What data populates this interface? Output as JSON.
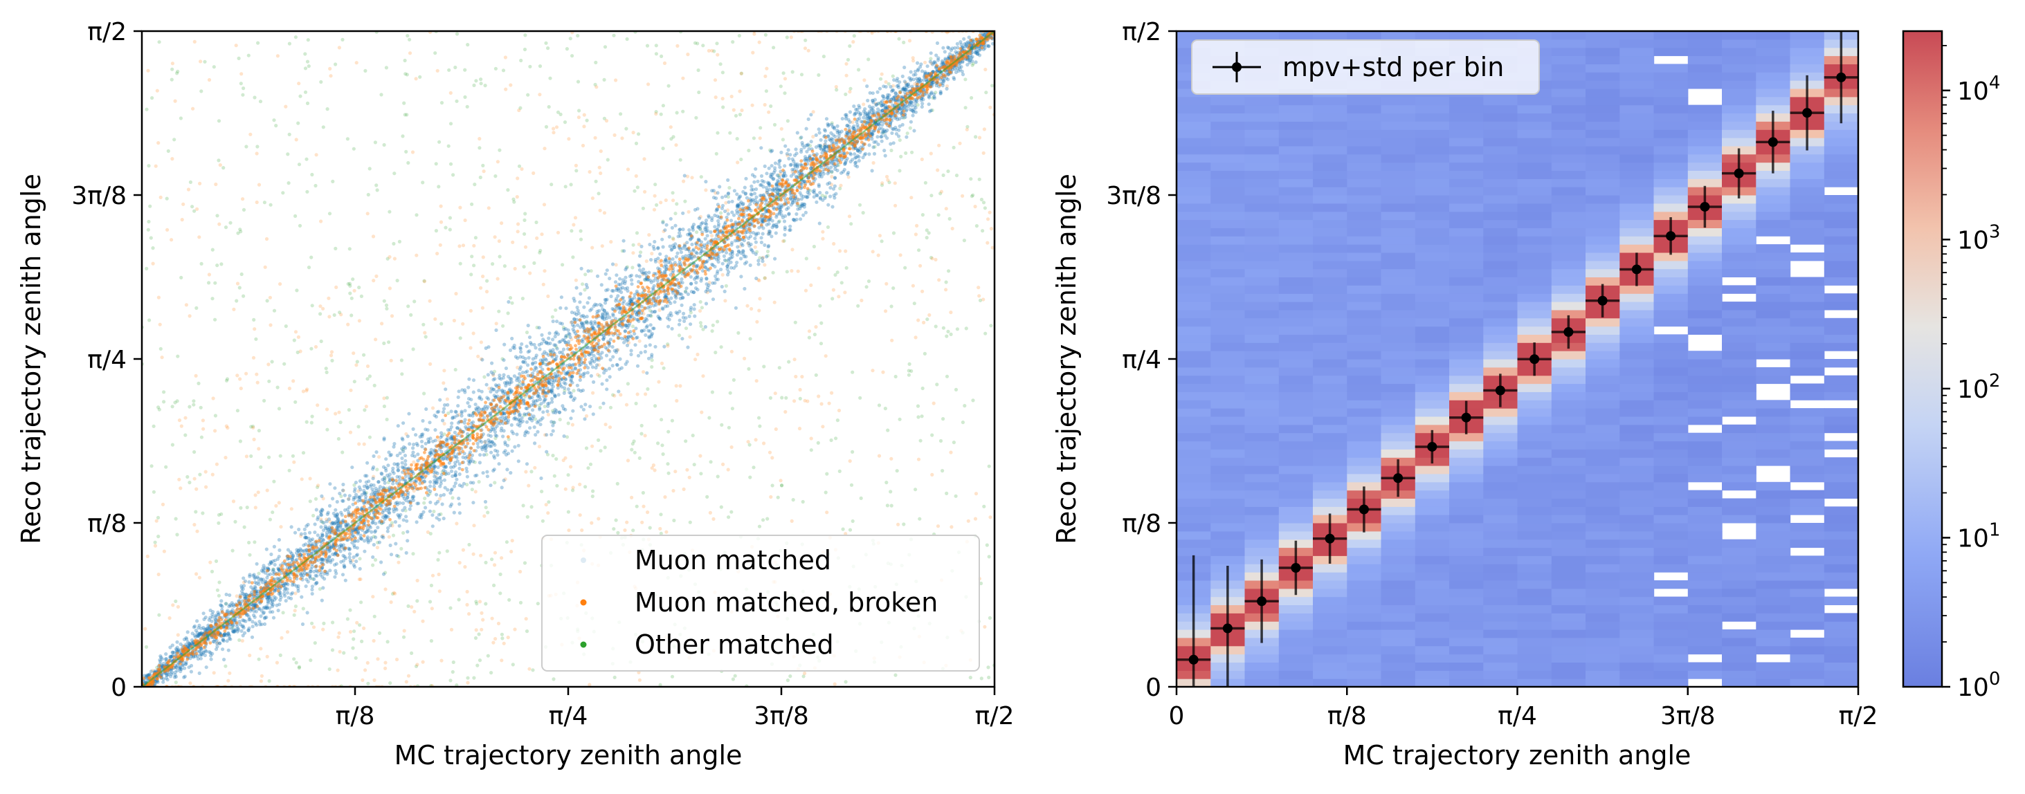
{
  "chart_data": [
    {
      "type": "scatter",
      "title": "",
      "xlabel": "MC trajectory zenith angle",
      "ylabel": "Reco trajectory zenith angle",
      "xlim": [
        0,
        1.5708
      ],
      "ylim": [
        0,
        1.5708
      ],
      "xticks": [
        {
          "value": 0.3927,
          "label": "π/8"
        },
        {
          "value": 0.7854,
          "label": "π/4"
        },
        {
          "value": 1.1781,
          "label": "3π/8"
        },
        {
          "value": 1.5708,
          "label": "π/2"
        }
      ],
      "yticks": [
        {
          "value": 0,
          "label": "0"
        },
        {
          "value": 0.3927,
          "label": "π/8"
        },
        {
          "value": 0.7854,
          "label": "π/4"
        },
        {
          "value": 1.1781,
          "label": "3π/8"
        },
        {
          "value": 1.5708,
          "label": "π/2"
        }
      ],
      "legend_position": "lower-right",
      "series": [
        {
          "name": "Muon matched",
          "color": "#1f77b4",
          "trend": "concentrated along diagonal y = x with spread growing toward mid-range",
          "points": [
            [
              0.05,
              0.05
            ],
            [
              0.2,
              0.21
            ],
            [
              0.4,
              0.38
            ],
            [
              0.6,
              0.62
            ],
            [
              0.8,
              0.79
            ],
            [
              1.0,
              1.01
            ],
            [
              1.2,
              1.2
            ],
            [
              1.4,
              1.41
            ],
            [
              1.55,
              1.55
            ]
          ]
        },
        {
          "name": "Muon matched, broken",
          "color": "#ff7f0e",
          "trend": "tight along diagonal plus diffuse background across full range",
          "points": [
            [
              0.1,
              0.1
            ],
            [
              0.5,
              0.5
            ],
            [
              0.9,
              0.9
            ],
            [
              1.3,
              1.3
            ],
            [
              0.4,
              1.3
            ],
            [
              1.2,
              0.3
            ]
          ]
        },
        {
          "name": "Other matched",
          "color": "#2ca02c",
          "trend": "diffuse background across whole plane plus diagonal",
          "points": [
            [
              0.3,
              0.3
            ],
            [
              1.5,
              1.5
            ],
            [
              0.2,
              1.1
            ],
            [
              1.4,
              0.5
            ],
            [
              0.7,
              1.45
            ]
          ]
        }
      ]
    },
    {
      "type": "heatmap",
      "title": "",
      "xlabel": "MC trajectory zenith angle",
      "ylabel": "Reco trajectory zenith angle",
      "xlim": [
        0,
        1.5708
      ],
      "ylim": [
        0,
        1.5708
      ],
      "xticks": [
        {
          "value": 0,
          "label": "0"
        },
        {
          "value": 0.3927,
          "label": "π/8"
        },
        {
          "value": 0.7854,
          "label": "π/4"
        },
        {
          "value": 1.1781,
          "label": "3π/8"
        },
        {
          "value": 1.5708,
          "label": "π/2"
        }
      ],
      "yticks": [
        {
          "value": 0,
          "label": "0"
        },
        {
          "value": 0.3927,
          "label": "π/8"
        },
        {
          "value": 0.7854,
          "label": "π/4"
        },
        {
          "value": 1.1781,
          "label": "3π/8"
        },
        {
          "value": 1.5708,
          "label": "π/2"
        }
      ],
      "colorbar": {
        "scale": "log",
        "range": [
          1,
          25000
        ],
        "colormap": "coolwarm",
        "ticks": [
          {
            "value": 1,
            "base": "10",
            "exp": "0"
          },
          {
            "value": 10,
            "base": "10",
            "exp": "1"
          },
          {
            "value": 100,
            "base": "10",
            "exp": "2"
          },
          {
            "value": 1000,
            "base": "10",
            "exp": "3"
          },
          {
            "value": 10000,
            "base": "10",
            "exp": "4"
          }
        ]
      },
      "legend_position": "upper-left",
      "series": [
        {
          "name": "mpv+std per bin",
          "color": "#000000",
          "x": [
            0.0393,
            0.1178,
            0.1963,
            0.2749,
            0.3534,
            0.432,
            0.5105,
            0.589,
            0.6676,
            0.7461,
            0.8247,
            0.9032,
            0.9817,
            1.0603,
            1.1388,
            1.2174,
            1.2959,
            1.3744,
            1.453,
            1.5315
          ],
          "y": [
            0.065,
            0.14,
            0.205,
            0.285,
            0.355,
            0.425,
            0.5,
            0.575,
            0.645,
            0.71,
            0.785,
            0.85,
            0.925,
            1.0,
            1.08,
            1.15,
            1.23,
            1.305,
            1.375,
            1.46
          ],
          "yerr": [
            0.25,
            0.15,
            0.1,
            0.065,
            0.06,
            0.055,
            0.045,
            0.04,
            0.04,
            0.04,
            0.04,
            0.04,
            0.04,
            0.04,
            0.045,
            0.05,
            0.06,
            0.075,
            0.09,
            0.11
          ]
        }
      ]
    }
  ]
}
